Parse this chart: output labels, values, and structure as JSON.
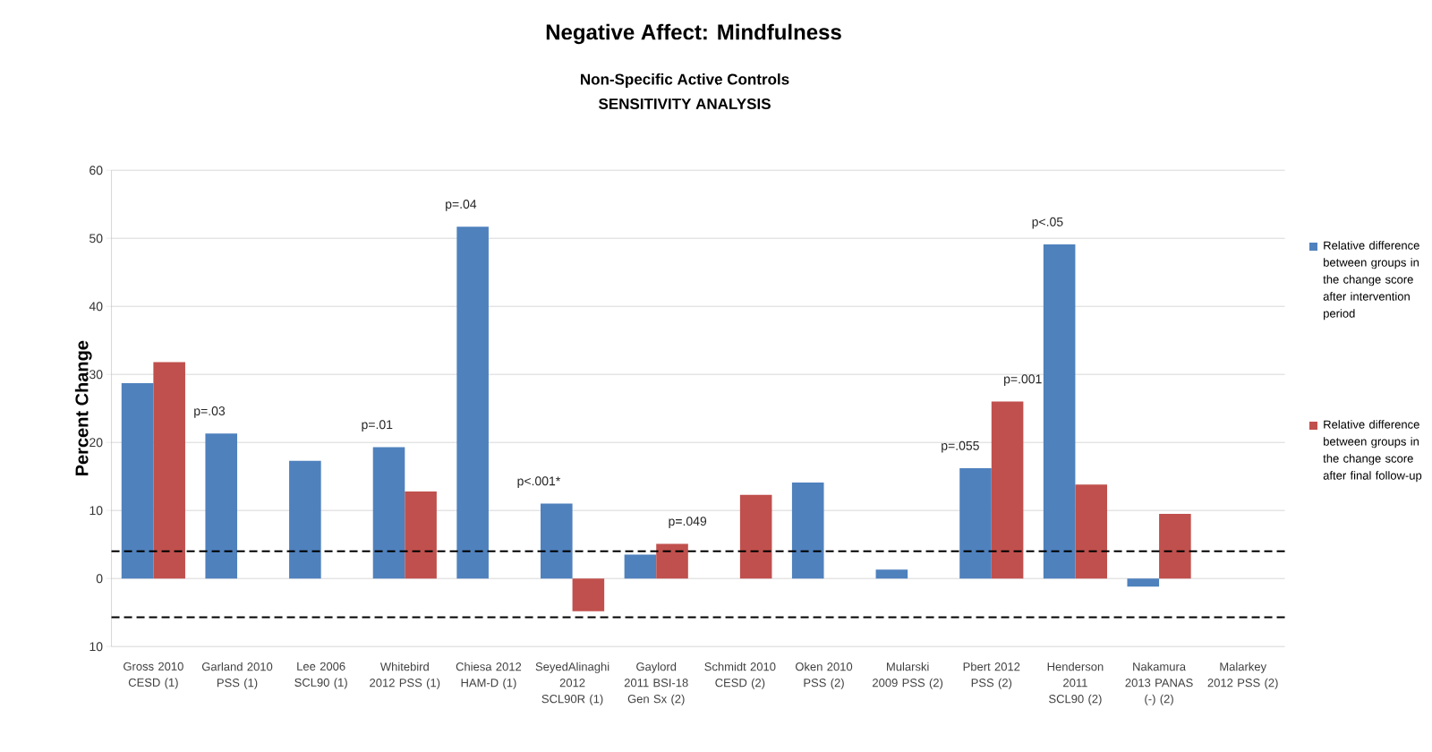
{
  "chart_data": {
    "type": "bar",
    "title": "Negative Affect: Mindfulness",
    "subtitle": "Non-Specific Active Controls",
    "ylabel": "Percent Change",
    "categories": [
      "Gross 2010 CESD (1)",
      "Garland 2010 PSS (1)",
      "Lee 2006 SCL90 (1)",
      "Whitebird 2012 PSS (1)",
      "Chiesa 2012 HAM-D (1)",
      "SeyedAlinaghi 2012 SCL90R (1)",
      "Gaylord 2011 BSI-18 Gen Sx (2)",
      "Schmidt 2010 CESD (2)",
      "Oken 2010 PSS (2)",
      "Mularski 2009 PSS (2)",
      "Pbert 2012 PSS (2)",
      "Henderson 2011 SCL90 (2)",
      "Nakamura 2013 PANAS (-) (2)",
      "Malarkey 2012 PSS (2)"
    ],
    "series": [
      {
        "name": "Relative difference between groups in the change score after intervention period",
        "color": "#4f81bd",
        "values": [
          28.7,
          21.3,
          17.3,
          19.3,
          51.7,
          11.0,
          3.5,
          null,
          14.1,
          1.3,
          16.2,
          49.1,
          -1.2,
          null
        ]
      },
      {
        "name": "Relative difference between groups in the change score after final follow-up",
        "color": "#c0504d",
        "values": [
          31.8,
          null,
          null,
          12.8,
          null,
          -4.8,
          5.1,
          12.3,
          null,
          null,
          26.0,
          13.8,
          9.5,
          null
        ]
      }
    ],
    "ylim": [
      -10,
      60
    ],
    "yticks": [
      {
        "value": -10,
        "label": "10"
      },
      0,
      10,
      20,
      30,
      40,
      50,
      60
    ],
    "grid": "y",
    "legend": "right",
    "ref_lines": [
      {
        "axis": "y",
        "value": 4,
        "color": "#000000",
        "line_style": "dashed"
      },
      {
        "axis": "y",
        "value": -5.7,
        "color": "#000000",
        "line_style": "dashed"
      }
    ],
    "annotations": [
      "SENSITIVITY ANALYSIS",
      {
        "text": "p=.03",
        "x": "Garland 2010 PSS (1)",
        "y": 21.3
      },
      {
        "text": "p=.01",
        "x": "Whitebird 2012 PSS (1)",
        "y": 19.3
      },
      {
        "text": "p=.04",
        "x": "Chiesa 2012 HAM-D (1)",
        "y": 51.7
      },
      {
        "text": "p<.001*",
        "x": "SeyedAlinaghi 2012 SCL90R (1)",
        "y": 11.0
      },
      {
        "text": "p=.049",
        "x": "Gaylord 2011 BSI-18 Gen Sx (2)",
        "y": 5.1
      },
      {
        "text": "p=.055",
        "x": "Pbert 2012 PSS (2)",
        "y": 16.2
      },
      {
        "text": "p=.001",
        "x": "Pbert 2012 PSS (2)",
        "y": 26.0
      },
      {
        "text": "p<.05",
        "x": "Henderson 2011 SCL90 (2)",
        "y": 49.1
      }
    ]
  }
}
